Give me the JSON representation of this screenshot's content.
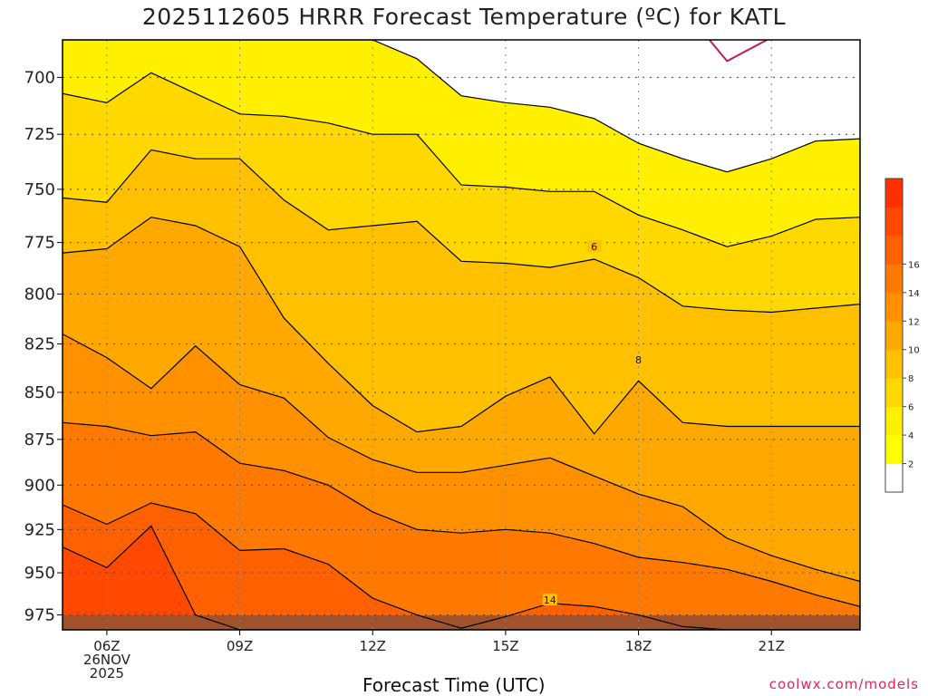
{
  "title": "2025112605 HRRR Forecast Temperature (ºC) for KATL",
  "xlabel": "Forecast Time (UTC)",
  "credit": "coolwx.com/models",
  "chart_data": {
    "type": "contour",
    "title": "2025112605 HRRR Forecast Temperature (ºC) for KATL",
    "xlabel": "Forecast Time (UTC)",
    "ylabel": "",
    "x_range_hours": [
      5,
      23
    ],
    "y_range_hpa": [
      984,
      684
    ],
    "y_scale": "log",
    "y_ticks": [
      700,
      725,
      750,
      775,
      800,
      825,
      850,
      875,
      900,
      925,
      950,
      975
    ],
    "x_ticks": [
      {
        "hour": 6,
        "lines": [
          "06Z",
          "26NOV",
          "2025"
        ]
      },
      {
        "hour": 9,
        "lines": [
          "09Z"
        ]
      },
      {
        "hour": 12,
        "lines": [
          "12Z"
        ]
      },
      {
        "hour": 15,
        "lines": [
          "15Z"
        ]
      },
      {
        "hour": 18,
        "lines": [
          "18Z"
        ]
      },
      {
        "hour": 21,
        "lines": [
          "21Z"
        ]
      }
    ],
    "grid": "dotted",
    "colorbar": {
      "ticks": [
        2,
        4,
        6,
        8,
        10,
        12,
        14,
        16
      ],
      "placement": "right",
      "colors": [
        "#ffffff",
        "#ffff00",
        "#fff000",
        "#ffd800",
        "#ffc000",
        "#ffa800",
        "#ff9000",
        "#ff7800",
        "#ff6000",
        "#ff4800",
        "#ff3000"
      ]
    },
    "contour_labels": [
      {
        "text": "6",
        "hour": 17.0,
        "p": 777
      },
      {
        "text": "8",
        "hour": 18.0,
        "p": 833
      },
      {
        "text": "14",
        "hour": 16.0,
        "p": 966
      }
    ],
    "hours": [
      5,
      6,
      7,
      8,
      9,
      10,
      11,
      12,
      13,
      14,
      15,
      16,
      17,
      18,
      19,
      20,
      21,
      22,
      23
    ],
    "isotherms": [
      {
        "level": 2,
        "p": [
          684,
          684,
          684,
          684,
          684,
          684,
          684,
          684,
          692,
          708,
          711,
          713,
          718,
          729,
          736,
          742,
          736,
          728,
          727
        ]
      },
      {
        "level": 4,
        "p": [
          707,
          711,
          698,
          707,
          716,
          717,
          720,
          725,
          725,
          748,
          749,
          751,
          751,
          762,
          769,
          777,
          772,
          764,
          763
        ]
      },
      {
        "level": 6,
        "p": [
          754,
          756,
          732,
          736,
          736,
          755,
          769,
          767,
          765,
          784,
          785,
          787,
          783,
          792,
          806,
          808,
          809,
          807,
          805
        ]
      },
      {
        "level": 8,
        "p": [
          780,
          778,
          763,
          767,
          777,
          812,
          835,
          857,
          871,
          868,
          852,
          842,
          872,
          844,
          866,
          868,
          868,
          868,
          868
        ]
      },
      {
        "level": 10,
        "p": [
          820,
          832,
          848,
          826,
          846,
          853,
          874,
          886,
          893,
          893,
          889,
          885,
          895,
          905,
          912,
          930,
          940,
          948,
          955
        ]
      },
      {
        "level": 12,
        "p": [
          866,
          868,
          873,
          871,
          888,
          892,
          900,
          915,
          925,
          927,
          925,
          927,
          933,
          941,
          944,
          948,
          955,
          963,
          970
        ]
      },
      {
        "level": 14,
        "p": [
          911,
          922,
          910,
          916,
          937,
          936,
          945,
          965,
          975,
          983,
          976,
          968,
          970,
          975,
          982,
          984,
          984,
          984,
          984
        ]
      },
      {
        "level": 16,
        "p": [
          935,
          947,
          923,
          975,
          984,
          984,
          984,
          984,
          984,
          984,
          984,
          984,
          984,
          984,
          984,
          984,
          984,
          984,
          984
        ]
      }
    ],
    "freezing_line": {
      "level": 0,
      "hours": [
        19.6,
        20.0,
        20.9
      ],
      "p": [
        684,
        693,
        684
      ]
    }
  }
}
